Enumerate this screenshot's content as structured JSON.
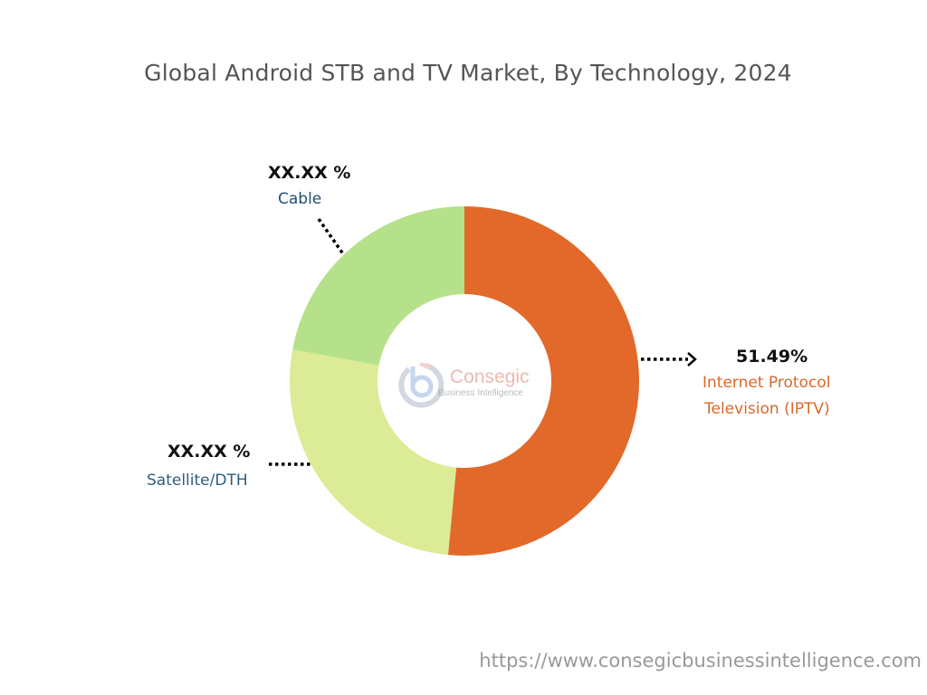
{
  "chart_data": {
    "type": "pie",
    "variant": "donut",
    "title": "Global Android STB and TV Market, By Technology, 2024",
    "slices": [
      {
        "name": "Internet Protocol Television (IPTV)",
        "label_lines": [
          "Internet Protocol",
          "Television (IPTV)"
        ],
        "value": 51.49,
        "value_label": "51.49%",
        "color": "#E2692A",
        "label_color": "#D9682B"
      },
      {
        "name": "Satellite/DTH",
        "label_lines": [
          "Satellite/DTH"
        ],
        "value": 26.4,
        "value_label": "XX.XX %",
        "color": "#DCEB95",
        "label_color": "#2E5E7E"
      },
      {
        "name": "Cable",
        "label_lines": [
          "Cable"
        ],
        "value": 22.11,
        "value_label": "XX.XX %",
        "color": "#B5E18A",
        "label_color": "#1F4E79"
      }
    ],
    "start_angle": "top",
    "direction": "clockwise"
  },
  "watermark": {
    "brand": "Consegic",
    "tagline": "Business Intelligence"
  },
  "footer": {
    "url": "https://www.consegicbusinessintelligence.com"
  }
}
